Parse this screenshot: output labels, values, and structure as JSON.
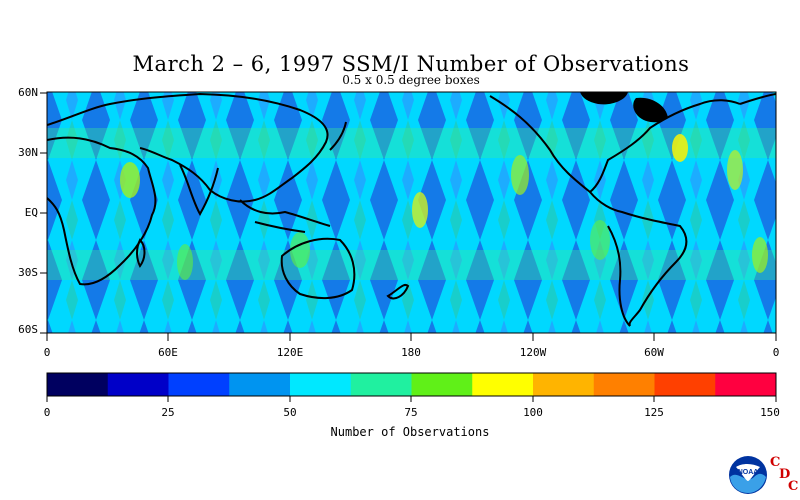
{
  "title": "March 2 – 6, 1997 SSM/I Number of Observations",
  "subtitle": "0.5 x 0.5 degree boxes",
  "lat_labels": [
    "60N",
    "30N",
    "EQ",
    "30S",
    "60S"
  ],
  "lon_labels": [
    "0",
    "60E",
    "120E",
    "180",
    "120W",
    "60W",
    "0"
  ],
  "colorbar": {
    "title": "Number of Observations",
    "tick_labels": [
      "0",
      "25",
      "50",
      "75",
      "100",
      "125",
      "150"
    ],
    "colors": [
      "#000060",
      "#0000c8",
      "#0040ff",
      "#0094f0",
      "#00e8ff",
      "#20f0a0",
      "#60f018",
      "#ffff00",
      "#ffb400",
      "#ff8000",
      "#ff4000",
      "#ff0040"
    ]
  },
  "logo": {
    "icon": "noaa-logo",
    "text": "NOAA",
    "letters": [
      "C",
      "D",
      "C"
    ]
  }
}
